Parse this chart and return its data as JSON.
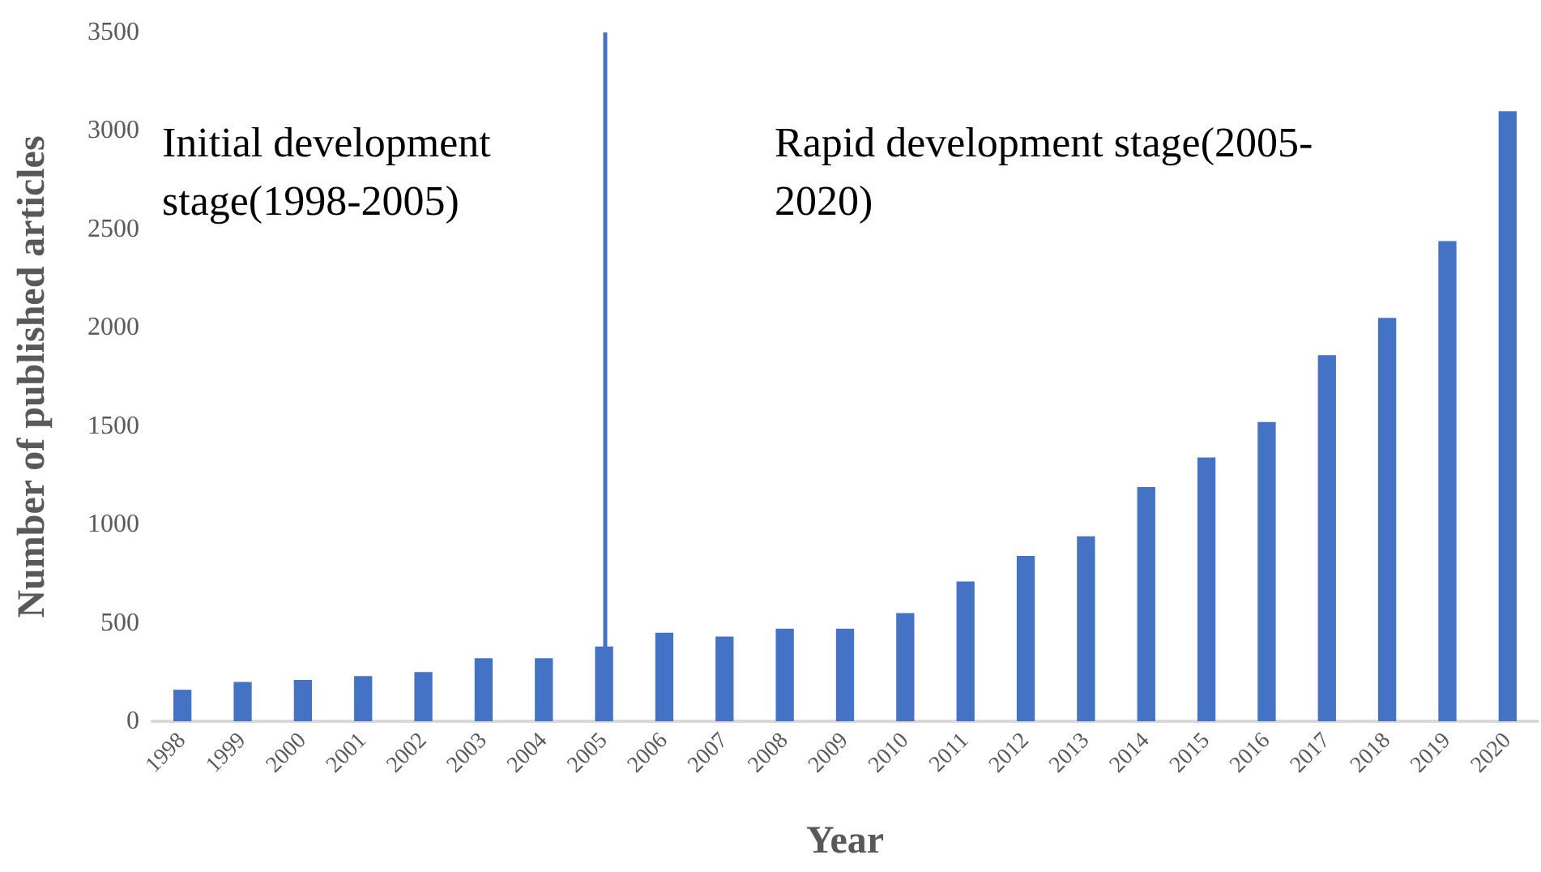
{
  "chart_data": {
    "type": "bar",
    "xlabel": "Year",
    "ylabel": "Number of published articles",
    "categories": [
      "1998",
      "1999",
      "2000",
      "2001",
      "2002",
      "2003",
      "2004",
      "2005",
      "2006",
      "2007",
      "2008",
      "2009",
      "2010",
      "2011",
      "2012",
      "2013",
      "2014",
      "2015",
      "2016",
      "2017",
      "2018",
      "2019",
      "2020"
    ],
    "series": [
      {
        "color": "#4472c4",
        "values": [
          160,
          200,
          210,
          230,
          250,
          320,
          320,
          380,
          450,
          430,
          470,
          470,
          550,
          710,
          840,
          940,
          1190,
          1340,
          1520,
          1860,
          2050,
          2440,
          3100
        ]
      }
    ],
    "ylim": [
      0,
      3500
    ],
    "yticks": [
      0,
      500,
      1000,
      1500,
      2000,
      2500,
      3000,
      3500
    ],
    "grid": false,
    "ref_lines": [
      {
        "axis": "x",
        "value": "2005",
        "color": "#4472c4"
      }
    ],
    "annotations": [
      "Initial development\nstage(1998-2005)",
      "Rapid development stage(2005-\n2020)"
    ]
  }
}
